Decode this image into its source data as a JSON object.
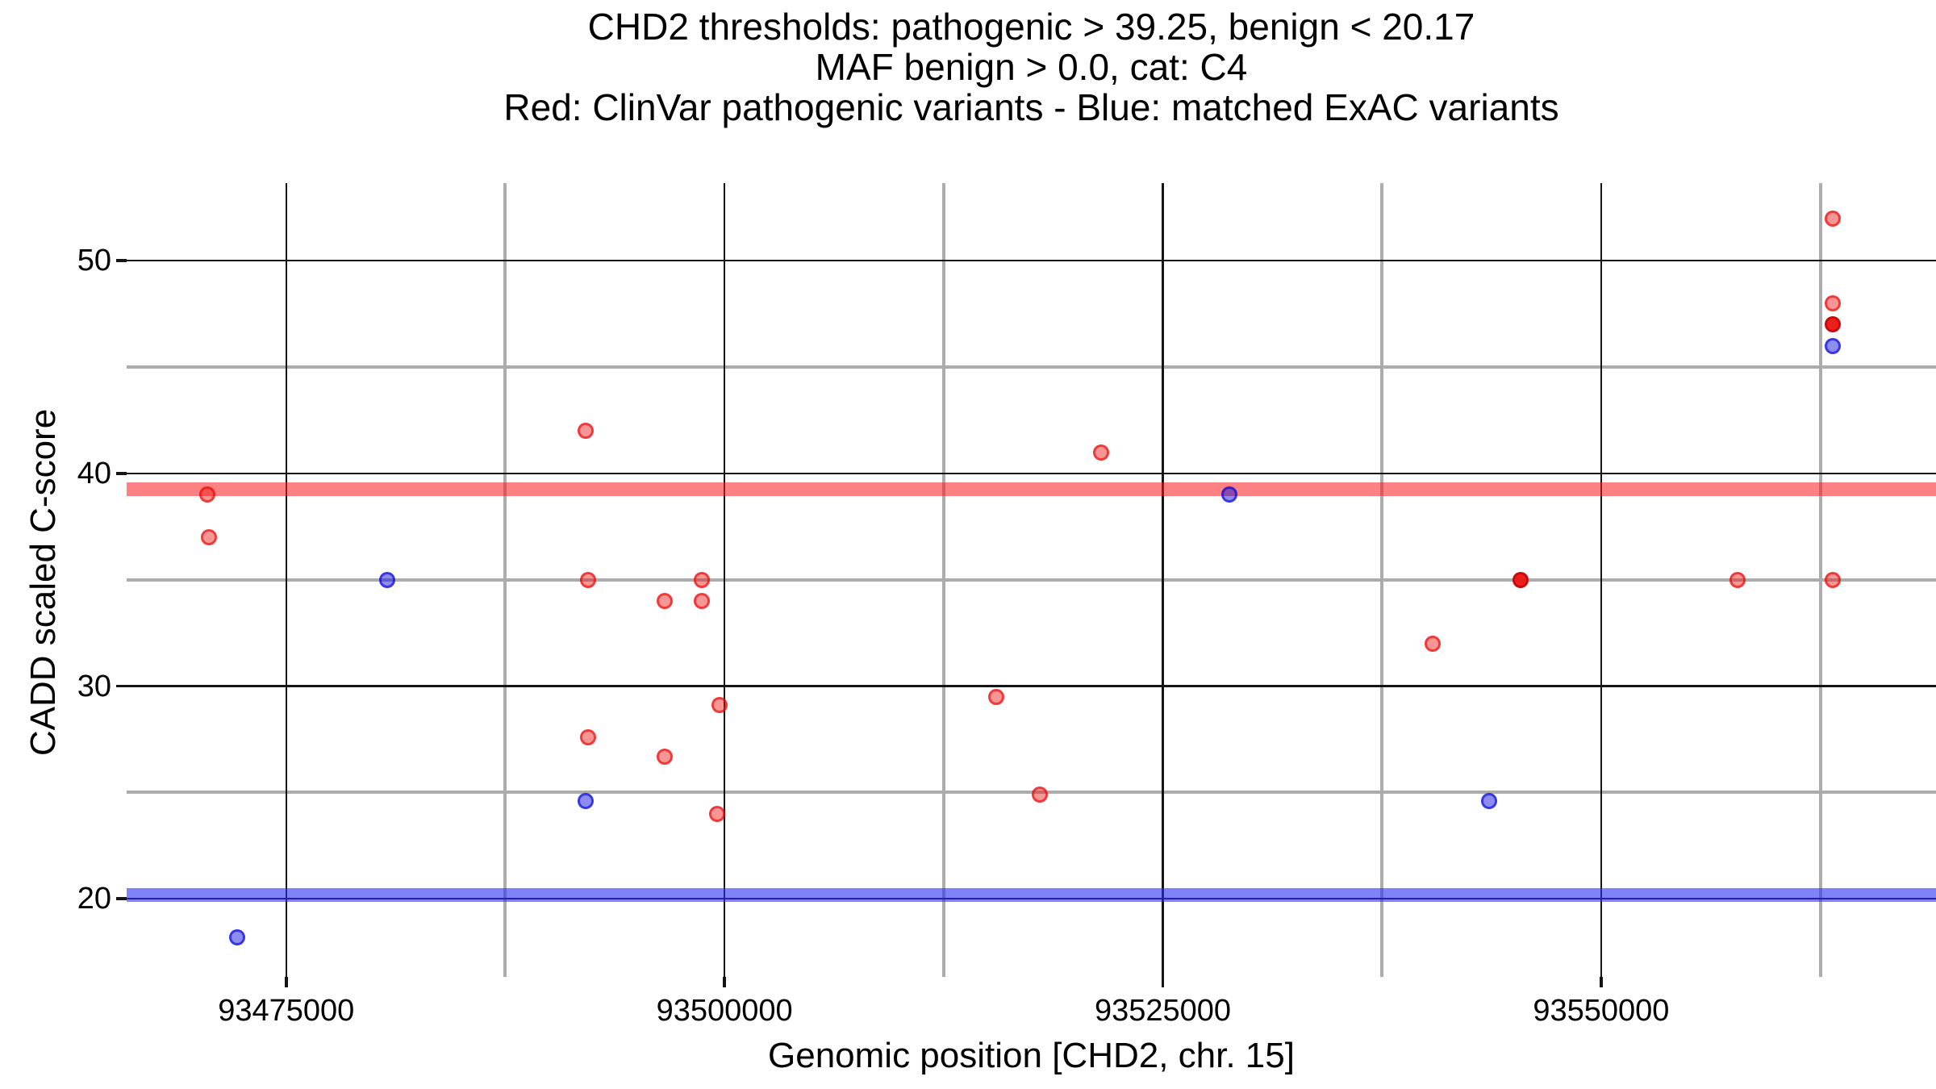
{
  "title": {
    "line1": "CHD2 thresholds: pathogenic > 39.25, benign < 20.17",
    "line2": "MAF benign > 0.0, cat: C4",
    "line3": "Red: ClinVar pathogenic variants - Blue: matched ExAC variants"
  },
  "axes": {
    "x_label": "Genomic position [CHD2, chr. 15]",
    "y_label": "CADD scaled C-score",
    "x_ticks": [
      {
        "value": 93475000,
        "label": "93475000"
      },
      {
        "value": 93500000,
        "label": "93500000"
      },
      {
        "value": 93525000,
        "label": "93525000"
      },
      {
        "value": 93550000,
        "label": "93550000"
      }
    ],
    "y_ticks": [
      {
        "value": 50,
        "label": "50"
      },
      {
        "value": 40,
        "label": "40"
      },
      {
        "value": 30,
        "label": "30"
      },
      {
        "value": 20,
        "label": "20"
      }
    ]
  },
  "colors": {
    "pathogenic_band": "rgba(247,26,30,0.55)",
    "benign_band": "rgba(45,46,247,0.60)",
    "red_point": "#f25d5d",
    "red_point_dark": "#ee2222",
    "blue_point": "#5b5be6",
    "grid_major": "#151515",
    "grid_minor": "#acacac"
  },
  "chart_data": {
    "type": "scatter",
    "title": "CHD2 thresholds: pathogenic > 39.25, benign < 20.17 | MAF benign > 0.0, cat: C4 | Red: ClinVar pathogenic variants - Blue: matched ExAC variants",
    "xlabel": "Genomic position [CHD2, chr. 15]",
    "ylabel": "CADD scaled C-score",
    "x_domain": [
      93465900,
      93569100
    ],
    "y_domain": [
      16.33,
      53.65
    ],
    "x_major_gridlines": [
      93475000,
      93500000,
      93525000,
      93550000
    ],
    "x_minor_gridlines": [
      93487500,
      93512500,
      93537500,
      93562500
    ],
    "y_major_gridlines": [
      20,
      30,
      40,
      50
    ],
    "y_minor_gridlines": [
      25,
      35,
      45
    ],
    "grid": true,
    "legend_position": "none",
    "thresholds": {
      "pathogenic": {
        "value": 39.25,
        "label": "pathogenic > 39.25"
      },
      "benign": {
        "value": 20.17,
        "label": "benign < 20.17"
      }
    },
    "series": [
      {
        "name": "ClinVar pathogenic variants",
        "color": "red",
        "points": [
          {
            "x": 93470500,
            "y": 39.0
          },
          {
            "x": 93470600,
            "y": 37.0
          },
          {
            "x": 93492100,
            "y": 42.0
          },
          {
            "x": 93492200,
            "y": 35.0
          },
          {
            "x": 93498700,
            "y": 35.0
          },
          {
            "x": 93496600,
            "y": 34.0
          },
          {
            "x": 93498700,
            "y": 34.0
          },
          {
            "x": 93499700,
            "y": 29.1
          },
          {
            "x": 93492200,
            "y": 27.6
          },
          {
            "x": 93496600,
            "y": 26.7
          },
          {
            "x": 93499600,
            "y": 24.0
          },
          {
            "x": 93515500,
            "y": 29.5
          },
          {
            "x": 93518000,
            "y": 24.9
          },
          {
            "x": 93521500,
            "y": 41.0
          },
          {
            "x": 93540400,
            "y": 32.0
          },
          {
            "x": 93545400,
            "y": 35.0,
            "overlap": true
          },
          {
            "x": 93557800,
            "y": 35.0
          },
          {
            "x": 93563200,
            "y": 52.0
          },
          {
            "x": 93563200,
            "y": 48.0
          },
          {
            "x": 93563200,
            "y": 47.0,
            "overlap": true
          },
          {
            "x": 93563200,
            "y": 35.0
          }
        ]
      },
      {
        "name": "matched ExAC variants",
        "color": "blue",
        "points": [
          {
            "x": 93472200,
            "y": 18.2
          },
          {
            "x": 93480750,
            "y": 35.0
          },
          {
            "x": 93492100,
            "y": 24.6
          },
          {
            "x": 93528800,
            "y": 39.0
          },
          {
            "x": 93543600,
            "y": 24.6
          },
          {
            "x": 93563200,
            "y": 46.0
          }
        ]
      }
    ]
  }
}
